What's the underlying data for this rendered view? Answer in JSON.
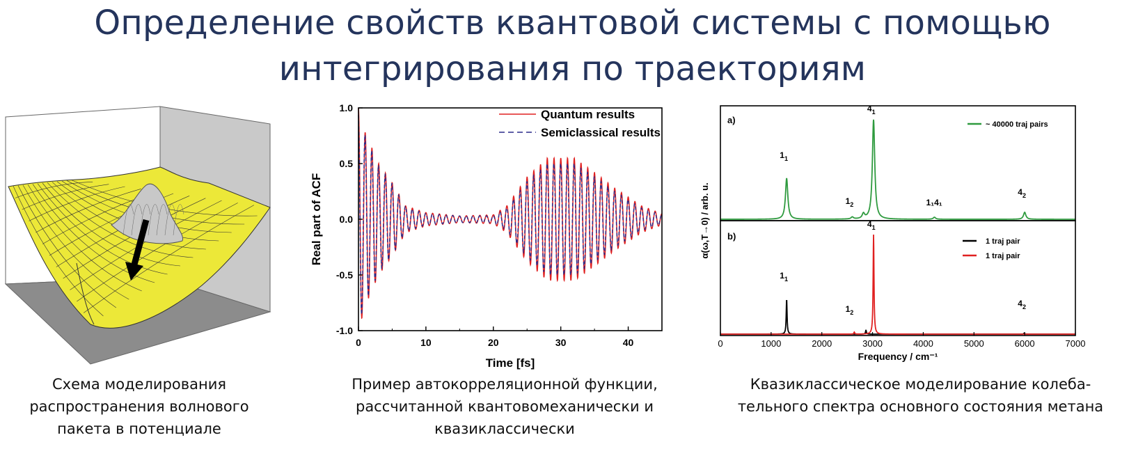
{
  "title": {
    "line1": "Определение свойств квантовой системы с помощью",
    "line2": "интегрирования по траекториям"
  },
  "panels": {
    "left": {
      "caption": [
        "Схема моделирования",
        "распространения волнового",
        "пакета в потенциале"
      ],
      "colors": {
        "surface": "#ece838",
        "packet": "#c8c8c8",
        "floor": "#8c8c8c",
        "wall": "#c9c9c9",
        "arrow": "#000000"
      },
      "icon": "potential-surface-with-wavepacket"
    },
    "middle": {
      "caption": [
        "Пример автокорреляционной функции,",
        "рассчитанной квантовомеханически и",
        "квазиклассически"
      ]
    },
    "right": {
      "caption": [
        "Квазиклассическое моделирование колеба-",
        "тельного спектра основного состояния метана"
      ]
    }
  },
  "chart_data": [
    {
      "type": "line",
      "xlabel": "Time [fs]",
      "ylabel": "Real part of ACF",
      "xlim": [
        0,
        45
      ],
      "ylim": [
        -1.0,
        1.0
      ],
      "xticks": [
        "0",
        "10",
        "20",
        "30",
        "40"
      ],
      "yticks": [
        "1.0",
        "0.5",
        "0.0",
        "-0.5",
        "-1.0"
      ],
      "legend_position": "top-right",
      "oscillation_period_fs": 1.0,
      "series": [
        {
          "name": "Quantum results",
          "color": "#e02020",
          "style": "solid",
          "envelope": {
            "t": [
              0,
              1,
              3,
              5,
              7,
              10,
              15,
              20,
              22,
              25,
              28,
              30,
              32,
              35,
              38,
              42,
              45
            ],
            "amp": [
              1.0,
              0.78,
              0.5,
              0.33,
              0.12,
              0.06,
              0.03,
              0.04,
              0.12,
              0.38,
              0.55,
              0.55,
              0.55,
              0.42,
              0.28,
              0.12,
              0.05
            ]
          }
        },
        {
          "name": "Semiclassical results",
          "color": "#2a2a8a",
          "style": "dashed",
          "envelope": {
            "t": [
              0,
              1,
              3,
              5,
              7,
              10,
              15,
              20,
              22,
              25,
              28,
              30,
              32,
              35,
              38,
              42,
              45
            ],
            "amp": [
              0.95,
              0.75,
              0.48,
              0.32,
              0.11,
              0.05,
              0.03,
              0.03,
              0.1,
              0.34,
              0.5,
              0.5,
              0.5,
              0.38,
              0.25,
              0.1,
              0.04
            ]
          }
        }
      ]
    },
    {
      "type": "line",
      "panel_label": "a)",
      "xlabel": "Frequency / cm⁻¹",
      "ylabel": "α(ω,T→0) / arb. u.",
      "xlim": [
        0,
        7000
      ],
      "xticks": [
        "0",
        "1000",
        "2000",
        "3000",
        "4000",
        "5000",
        "6000",
        "7000"
      ],
      "legend_position": "top-right",
      "series": [
        {
          "name": "~ 40000 traj pairs",
          "color": "#2e9a3e",
          "peaks": [
            {
              "x": 1306,
              "h": 0.41
            },
            {
              "x": 2600,
              "h": 0.02
            },
            {
              "x": 2820,
              "h": 0.05
            },
            {
              "x": 3020,
              "h": 1.0
            },
            {
              "x": 4220,
              "h": 0.02
            },
            {
              "x": 6000,
              "h": 0.07
            }
          ]
        }
      ],
      "annotations": [
        {
          "label": "1",
          "sub": "1",
          "x": 1306
        },
        {
          "label": "1",
          "sub": "2",
          "x": 2600
        },
        {
          "label": "4",
          "sub": "1",
          "x": 3030
        },
        {
          "label": "1₁4₁",
          "sub": "",
          "x": 4270
        },
        {
          "label": "4",
          "sub": "2",
          "x": 6000
        }
      ]
    },
    {
      "type": "line",
      "panel_label": "b)",
      "xlabel": "Frequency / cm⁻¹",
      "xlim": [
        0,
        7000
      ],
      "legend_position": "top-right",
      "series": [
        {
          "name": "1 traj pair",
          "color": "#000000",
          "peaks": [
            {
              "x": 1306,
              "h": 0.35
            },
            {
              "x": 2870,
              "h": 0.04
            },
            {
              "x": 5990,
              "h": 0.01
            }
          ]
        },
        {
          "name": "1 traj pair",
          "color": "#e02020",
          "peaks": [
            {
              "x": 3020,
              "h": 1.0
            },
            {
              "x": 2640,
              "h": 0.02
            }
          ]
        }
      ],
      "annotations": [
        {
          "label": "1",
          "sub": "1",
          "x": 1306
        },
        {
          "label": "1",
          "sub": "2",
          "x": 2600
        },
        {
          "label": "4",
          "sub": "1",
          "x": 3030
        },
        {
          "label": "4",
          "sub": "2",
          "x": 6000
        }
      ]
    }
  ]
}
